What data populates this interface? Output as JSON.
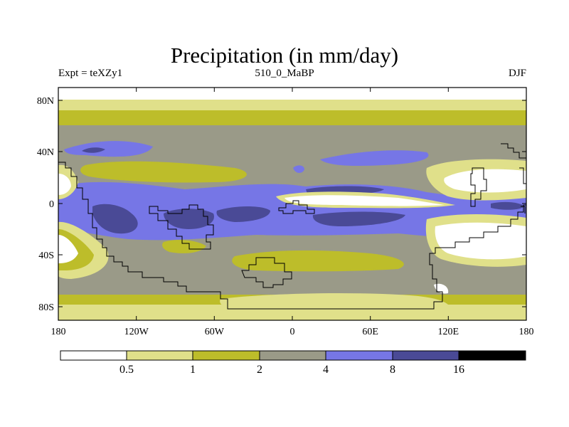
{
  "title": "Precipitation (in mm/day)",
  "subtitle": {
    "left": "Expt = teXZy1",
    "center": "510_0_MaBP",
    "right": "DJF"
  },
  "lat_labels": [
    "80N",
    "40N",
    "0",
    "40S",
    "80S"
  ],
  "lon_labels": [
    "180",
    "120W",
    "60W",
    "0",
    "60E",
    "120E",
    "180"
  ],
  "colorbar": {
    "colors": [
      "#ffffff",
      "#e0e08a",
      "#bdbd2a",
      "#9a9a88",
      "#7676e6",
      "#4a4a96",
      "#000000"
    ],
    "levels": [
      "0.5",
      "1",
      "2",
      "4",
      "8",
      "16"
    ]
  },
  "palette": {
    "white": "#ffffff",
    "light_yellow": "#e0e08a",
    "olive": "#bdbd2a",
    "gray": "#9a9a88",
    "blue": "#7676e6",
    "dark_blue": "#4a4a96"
  }
}
